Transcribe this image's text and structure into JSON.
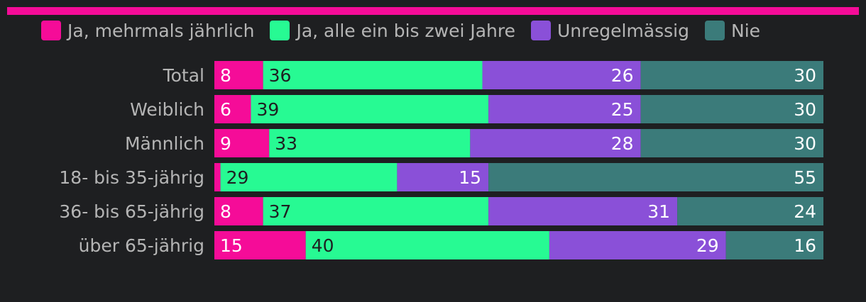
{
  "accent_color": "#f50c98",
  "chart_data": {
    "type": "bar",
    "orientation": "horizontal",
    "stacked": true,
    "title": "",
    "xlabel": "",
    "ylabel": "",
    "xlim": [
      0,
      100
    ],
    "grid": false,
    "legend_position": "top",
    "categories": [
      "Total",
      "Weiblich",
      "Männlich",
      "18- bis 35-jährig",
      "36- bis 65-jährig",
      "über 65-jährig"
    ],
    "series": [
      {
        "name": "Ja, mehrmals jährlich",
        "color": "#f50c98",
        "label_color": "#ffffff",
        "values": [
          8,
          6,
          9,
          1,
          8,
          15
        ],
        "labels": [
          "8",
          "6",
          "9",
          "",
          "8",
          "15"
        ]
      },
      {
        "name": "Ja, alle ein bis zwei Jahre",
        "color": "#27fa93",
        "label_color": "#1e1f21",
        "values": [
          36,
          39,
          33,
          29,
          37,
          40
        ],
        "labels": [
          "36",
          "39",
          "33",
          "29",
          "37",
          "40"
        ]
      },
      {
        "name": "Unregelmässig",
        "color": "#8a50d8",
        "label_color": "#ffffff",
        "values": [
          26,
          25,
          28,
          15,
          31,
          29
        ],
        "labels": [
          "26",
          "25",
          "28",
          "15",
          "31",
          "29"
        ]
      },
      {
        "name": "Nie",
        "color": "#3b7b7a",
        "label_color": "#ffffff",
        "values": [
          30,
          30,
          30,
          55,
          24,
          16
        ],
        "labels": [
          "30",
          "30",
          "30",
          "55",
          "24",
          "16"
        ]
      }
    ]
  }
}
